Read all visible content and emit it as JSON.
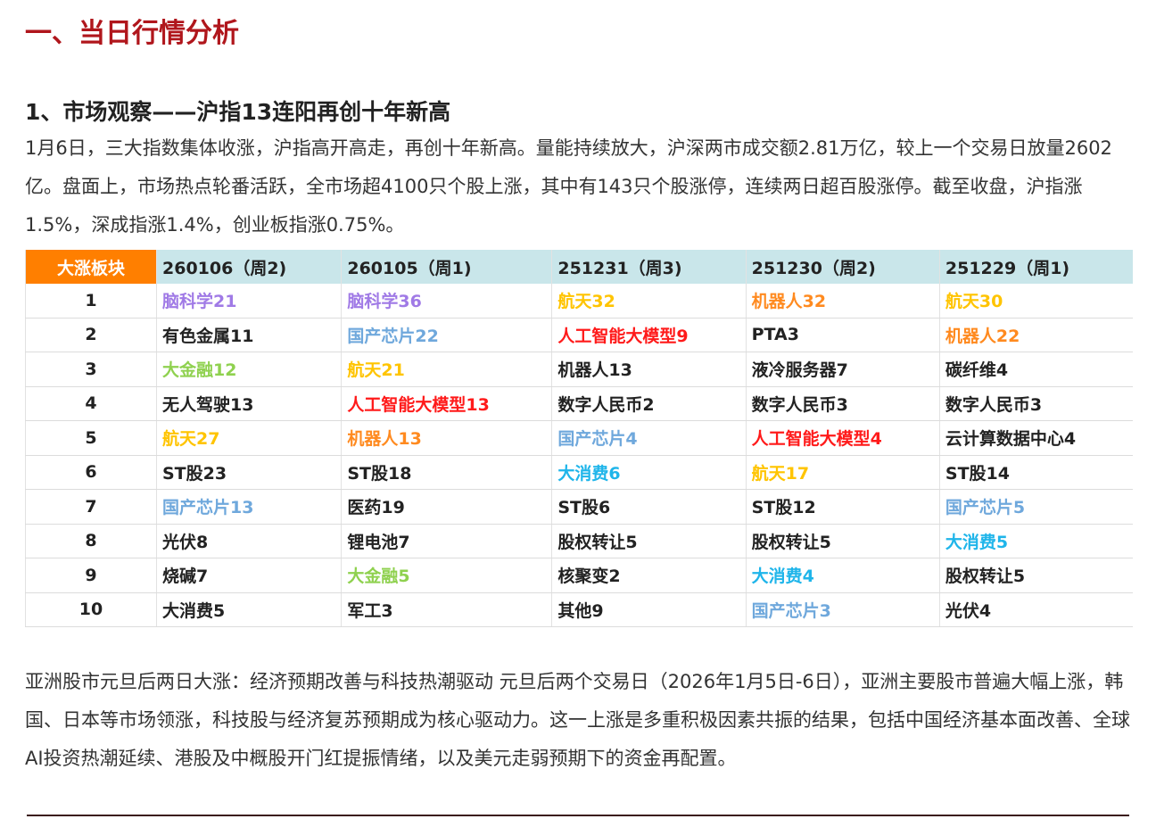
{
  "section_title": "一、当日行情分析",
  "subsection_title": "1、市场观察——沪指13连阳再创十年新高",
  "intro": "1月6日，三大指数集体收涨，沪指高开高走，再创十年新高。量能持续放大，沪深两市成交额2.81万亿，较上一个交易日放量2602亿。盘面上，市场热点轮番活跃，全市场超4100只个股上涨，其中有143只个股涨停，连续两日超百股涨停。截至收盘，沪指涨1.5%，深成指涨1.4%，创业板指涨0.75%。",
  "table": {
    "corner": "大涨板块",
    "headers": [
      "260106（周2)",
      "260105（周1)",
      "251231（周3)",
      "251230（周2)",
      "251229（周1)"
    ],
    "rows": [
      {
        "rank": "1",
        "cells": [
          {
            "t": "脑科学21",
            "c": "#a07ae6"
          },
          {
            "t": "脑科学36",
            "c": "#a07ae6"
          },
          {
            "t": "航天32",
            "c": "#ffc400"
          },
          {
            "t": "机器人32",
            "c": "#ff8a1f"
          },
          {
            "t": "航天30",
            "c": "#ffc400"
          }
        ]
      },
      {
        "rank": "2",
        "cells": [
          {
            "t": "有色金属11",
            "c": "#222"
          },
          {
            "t": "国产芯片22",
            "c": "#6fa8dc"
          },
          {
            "t": "人工智能大模型9",
            "c": "#ff1a1a"
          },
          {
            "t": "PTA3",
            "c": "#222"
          },
          {
            "t": "机器人22",
            "c": "#ff8a1f"
          }
        ]
      },
      {
        "rank": "3",
        "cells": [
          {
            "t": "大金融12",
            "c": "#8fd14f"
          },
          {
            "t": "航天21",
            "c": "#ffc400"
          },
          {
            "t": "机器人13",
            "c": "#222"
          },
          {
            "t": "液冷服务器7",
            "c": "#222"
          },
          {
            "t": "碳纤维4",
            "c": "#222"
          }
        ]
      },
      {
        "rank": "4",
        "cells": [
          {
            "t": "无人驾驶13",
            "c": "#222"
          },
          {
            "t": "人工智能大模型13",
            "c": "#ff1a1a"
          },
          {
            "t": "数字人民币2",
            "c": "#222"
          },
          {
            "t": "数字人民币3",
            "c": "#222"
          },
          {
            "t": "数字人民币3",
            "c": "#222"
          }
        ]
      },
      {
        "rank": "5",
        "cells": [
          {
            "t": "航天27",
            "c": "#ffc400"
          },
          {
            "t": "机器人13",
            "c": "#ff8a1f"
          },
          {
            "t": "国产芯片4",
            "c": "#6fa8dc"
          },
          {
            "t": "人工智能大模型4",
            "c": "#ff1a1a"
          },
          {
            "t": "云计算数据中心4",
            "c": "#222"
          }
        ]
      },
      {
        "rank": "6",
        "cells": [
          {
            "t": "ST股23",
            "c": "#222"
          },
          {
            "t": "ST股18",
            "c": "#222"
          },
          {
            "t": "大消费6",
            "c": "#1fb5ea"
          },
          {
            "t": "航天17",
            "c": "#ffc400"
          },
          {
            "t": "ST股14",
            "c": "#222"
          }
        ]
      },
      {
        "rank": "7",
        "cells": [
          {
            "t": "国产芯片13",
            "c": "#6fa8dc"
          },
          {
            "t": "医药19",
            "c": "#222"
          },
          {
            "t": "ST股6",
            "c": "#222"
          },
          {
            "t": "ST股12",
            "c": "#222"
          },
          {
            "t": "国产芯片5",
            "c": "#6fa8dc"
          }
        ]
      },
      {
        "rank": "8",
        "cells": [
          {
            "t": "光伏8",
            "c": "#222"
          },
          {
            "t": "锂电池7",
            "c": "#222"
          },
          {
            "t": "股权转让5",
            "c": "#222"
          },
          {
            "t": "股权转让5",
            "c": "#222"
          },
          {
            "t": "大消费5",
            "c": "#1fb5ea"
          }
        ]
      },
      {
        "rank": "9",
        "cells": [
          {
            "t": "烧碱7",
            "c": "#222"
          },
          {
            "t": "大金融5",
            "c": "#8fd14f"
          },
          {
            "t": "核聚变2",
            "c": "#222"
          },
          {
            "t": "大消费4",
            "c": "#1fb5ea"
          },
          {
            "t": "股权转让5",
            "c": "#222"
          }
        ]
      },
      {
        "rank": "10",
        "cells": [
          {
            "t": "大消费5",
            "c": "#222"
          },
          {
            "t": "军工3",
            "c": "#222"
          },
          {
            "t": "其他9",
            "c": "#222"
          },
          {
            "t": "国产芯片3",
            "c": "#6fa8dc"
          },
          {
            "t": "光伏4",
            "c": "#222"
          }
        ]
      }
    ]
  },
  "asia_paragraph": "亚洲股市元旦后两日大涨：经济预期改善与科技热潮驱动 元旦后两个交易日（2026年1月5日-6日），亚洲主要股市普遍大幅上涨，韩国、日本等市场领涨，科技股与经济复苏预期成为核心驱动力。这一上涨是多重积极因素共振的结果，包括中国经济基本面改善、全球AI投资热潮延续、港股及中概股开门红提振情绪，以及美元走弱预期下的资金再配置。"
}
